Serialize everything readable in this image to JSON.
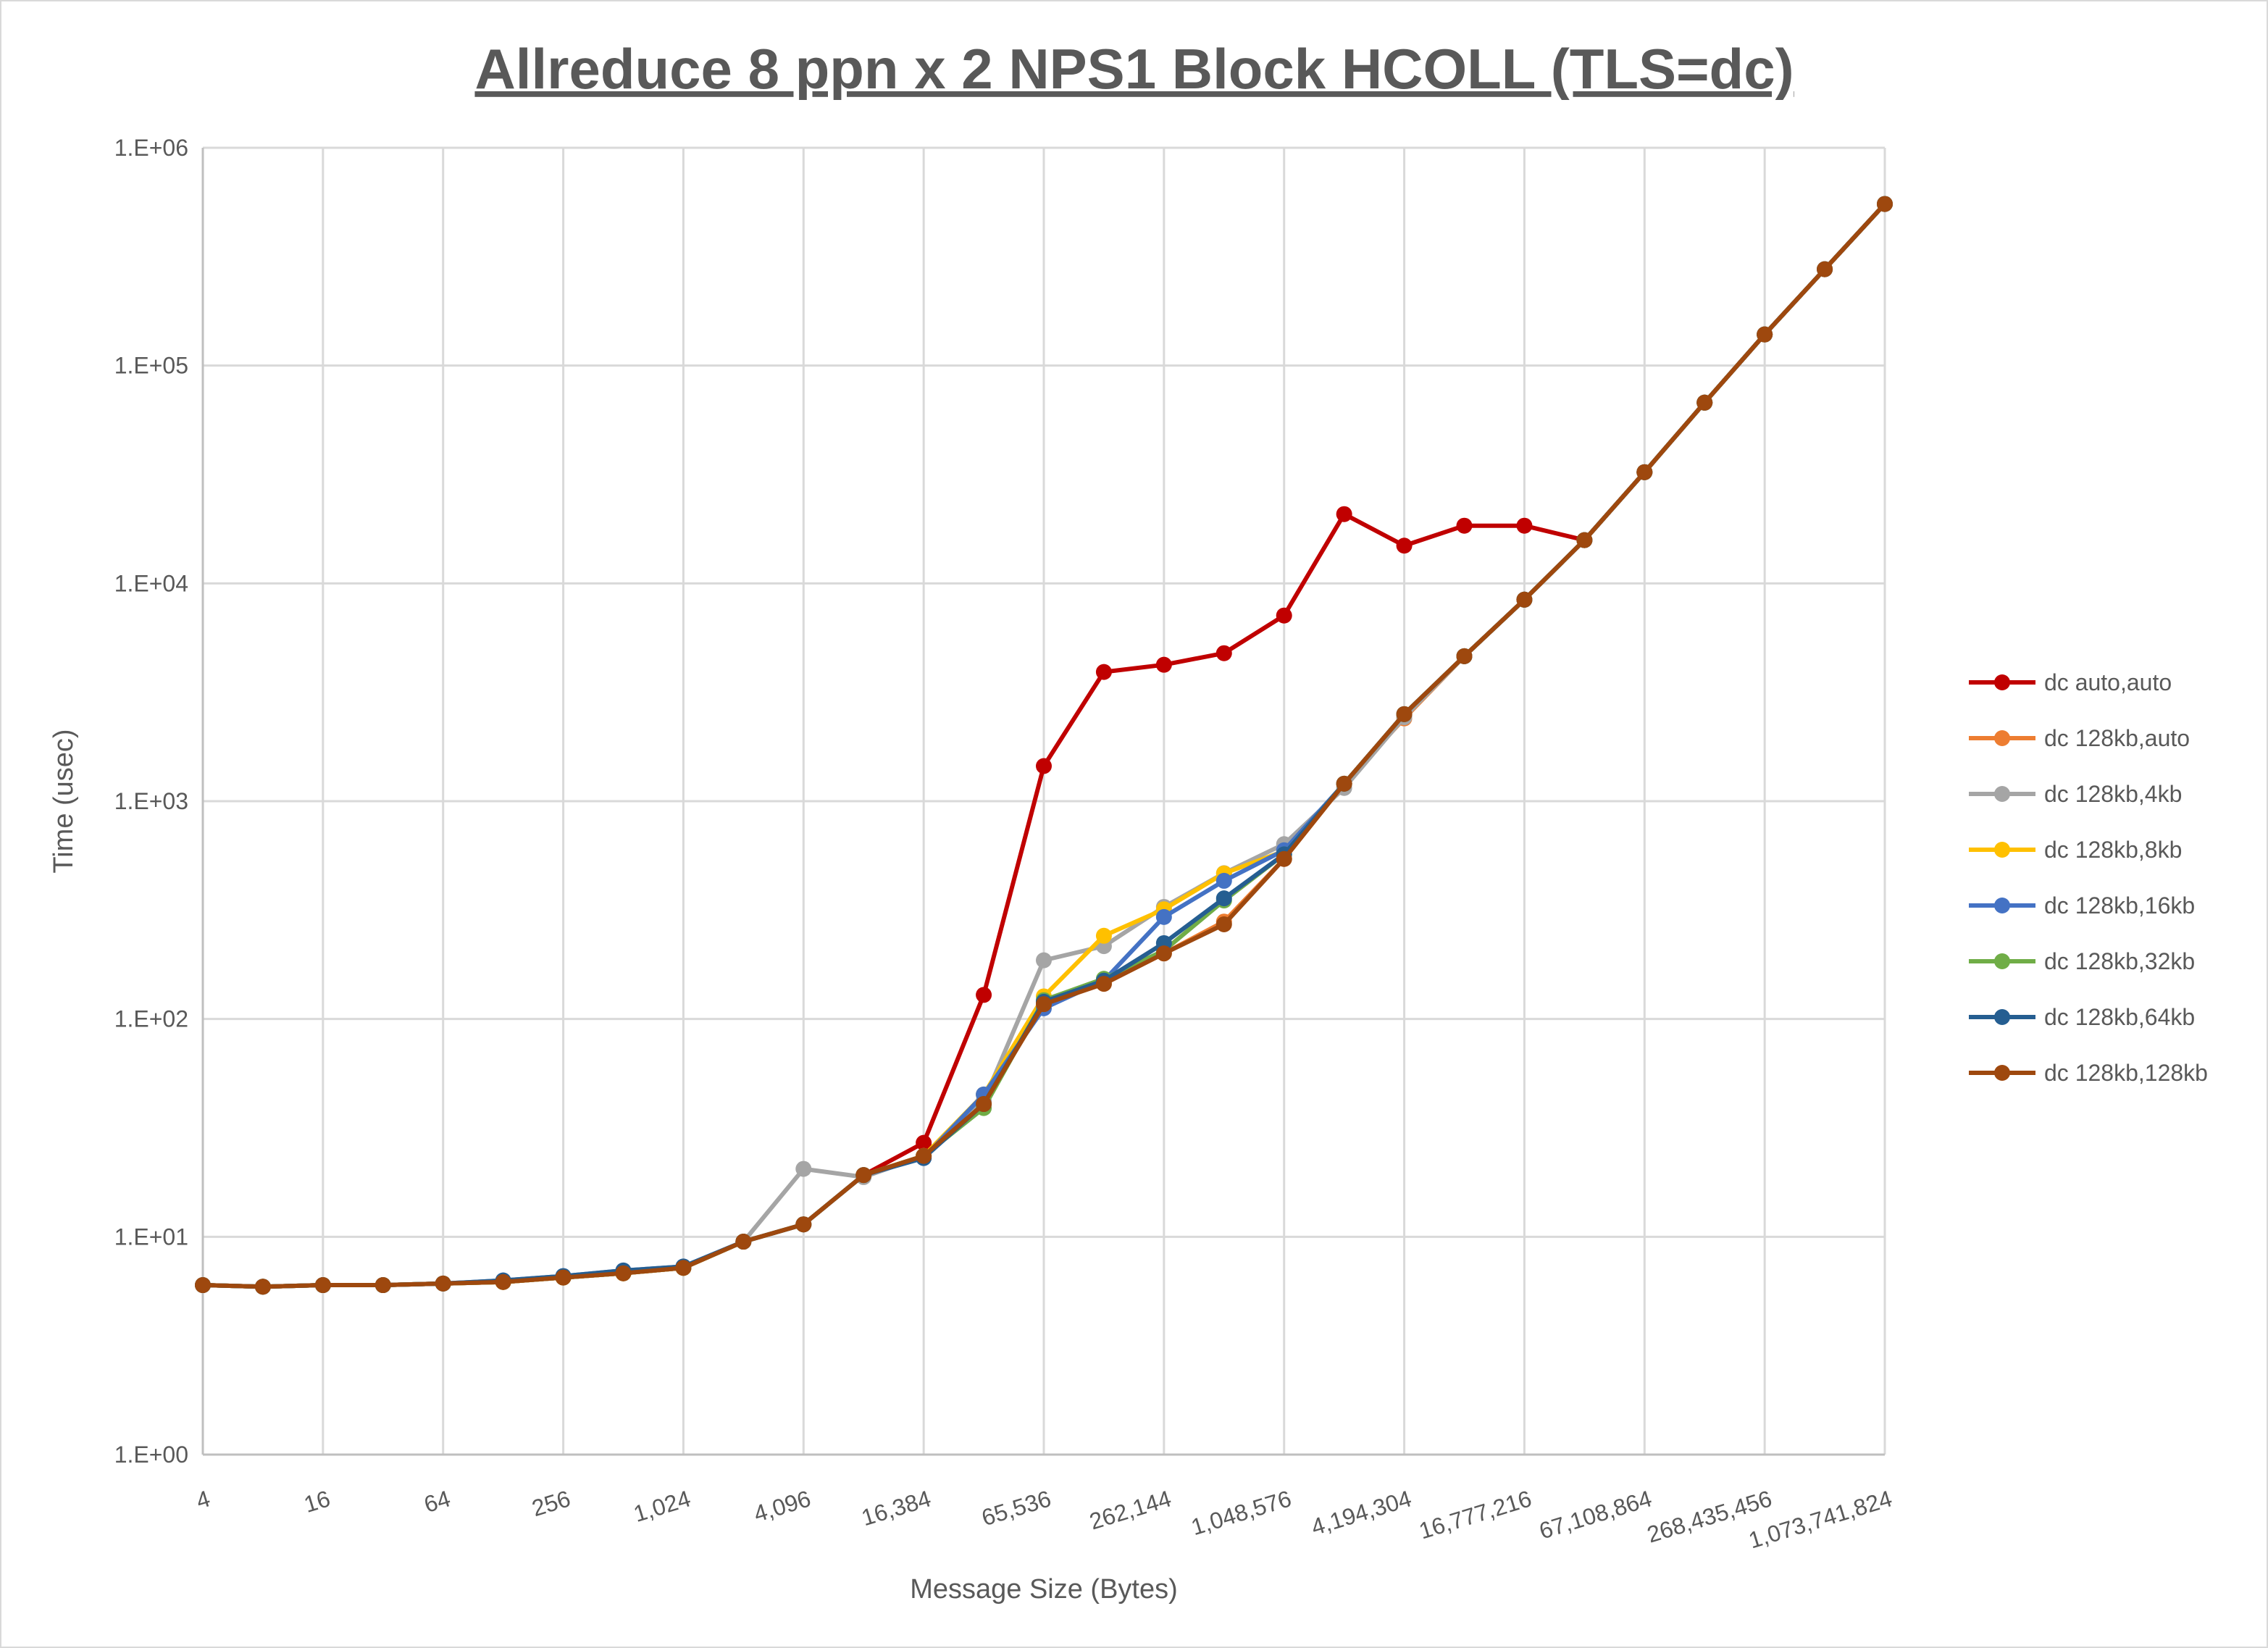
{
  "chart_data": {
    "type": "line",
    "title": "Allreduce 8 ppn x 2 NPS1 Block HCOLL (TLS=dc)",
    "xlabel": "Message Size (Bytes)",
    "ylabel": "Time (usec)",
    "y_scale": "log",
    "ylim": [
      1,
      1000000
    ],
    "y_tick_labels": [
      "1.E+00",
      "1.E+01",
      "1.E+02",
      "1.E+03",
      "1.E+04",
      "1.E+05",
      "1.E+06"
    ],
    "x": [
      4,
      8,
      16,
      32,
      64,
      128,
      256,
      512,
      1024,
      2048,
      4096,
      8192,
      16384,
      32768,
      65536,
      131072,
      262144,
      524288,
      1048576,
      2097152,
      4194304,
      8388608,
      16777216,
      33554432,
      67108864,
      134217728,
      268435456,
      536870912,
      1073741824
    ],
    "x_tick_labels": [
      "4",
      "16",
      "64",
      "256",
      "1,024",
      "4,096",
      "16,384",
      "65,536",
      "262,144",
      "1,048,576",
      "4,194,304",
      "16,777,216",
      "67,108,864",
      "268,435,456",
      "1,073,741,824"
    ],
    "grid": true,
    "legend_position": "right",
    "series": [
      {
        "name": "dc auto,auto",
        "color": "#C00000",
        "values": [
          6.0,
          5.9,
          6.0,
          6.0,
          6.1,
          6.2,
          6.5,
          6.8,
          7.2,
          9.5,
          11.4,
          19.2,
          27,
          129,
          1450,
          3920,
          4230,
          4780,
          7120,
          20800,
          14900,
          18400,
          18400,
          15800,
          32400,
          67600,
          139000,
          277000,
          552000
        ]
      },
      {
        "name": "dc 128kb,auto",
        "color": "#ED7D31",
        "values": [
          6.0,
          5.9,
          6.0,
          6.0,
          6.1,
          6.2,
          6.5,
          6.8,
          7.2,
          9.5,
          11.4,
          19.2,
          23.5,
          40.7,
          120,
          145,
          200,
          280,
          543,
          1203,
          2400,
          4630,
          8420,
          15800,
          32400,
          67600,
          139000,
          277000,
          552000
        ]
      },
      {
        "name": "dc 128kb,4kb",
        "color": "#A5A5A5",
        "values": [
          6.0,
          5.9,
          6.0,
          6.0,
          6.1,
          6.2,
          6.5,
          6.8,
          7.2,
          9.5,
          20.5,
          18.8,
          23.5,
          42,
          186,
          216,
          327,
          467,
          635,
          1150,
          2430,
          4630,
          8420,
          15800,
          32400,
          67600,
          139000,
          277000,
          552000
        ]
      },
      {
        "name": "dc 128kb,8kb",
        "color": "#FFC000",
        "values": [
          6.0,
          5.9,
          6.0,
          6.0,
          6.1,
          6.2,
          6.5,
          6.8,
          7.2,
          9.5,
          11.4,
          19.2,
          23.5,
          45,
          127,
          241,
          319,
          466,
          590,
          1203,
          2510,
          4630,
          8420,
          15800,
          32400,
          67600,
          139000,
          277000,
          552000
        ]
      },
      {
        "name": "dc 128kb,16kb",
        "color": "#4472C4",
        "values": [
          6.0,
          5.9,
          6.0,
          6.0,
          6.1,
          6.3,
          6.6,
          7.0,
          7.3,
          9.5,
          11.4,
          19.2,
          23,
          45,
          112,
          150,
          294,
          431,
          595,
          1203,
          2510,
          4630,
          8420,
          15800,
          32400,
          67600,
          139000,
          277000,
          552000
        ]
      },
      {
        "name": "dc 128kb,32kb",
        "color": "#70AD47",
        "values": [
          6.0,
          5.9,
          6.0,
          6.0,
          6.1,
          6.2,
          6.5,
          6.8,
          7.2,
          9.5,
          11.4,
          19.2,
          23.5,
          39,
          122,
          153,
          206,
          350,
          570,
          1203,
          2510,
          4630,
          8420,
          15800,
          32400,
          67600,
          139000,
          277000,
          552000
        ]
      },
      {
        "name": "dc 128kb,64kb",
        "color": "#255E91",
        "values": [
          6.0,
          5.9,
          6.0,
          6.0,
          6.1,
          6.3,
          6.6,
          7.0,
          7.3,
          9.5,
          11.4,
          19.2,
          23,
          40.7,
          120,
          150,
          223,
          358,
          570,
          1203,
          2510,
          4630,
          8420,
          15800,
          32400,
          67600,
          139000,
          277000,
          552000
        ]
      },
      {
        "name": "dc 128kb,128kb",
        "color": "#9E480E",
        "values": [
          6.0,
          5.9,
          6.0,
          6.0,
          6.1,
          6.2,
          6.5,
          6.8,
          7.2,
          9.5,
          11.4,
          19.2,
          23.5,
          40.7,
          117,
          145,
          200,
          272,
          543,
          1203,
          2510,
          4630,
          8420,
          15800,
          32400,
          67600,
          139000,
          277000,
          552000
        ]
      }
    ]
  }
}
